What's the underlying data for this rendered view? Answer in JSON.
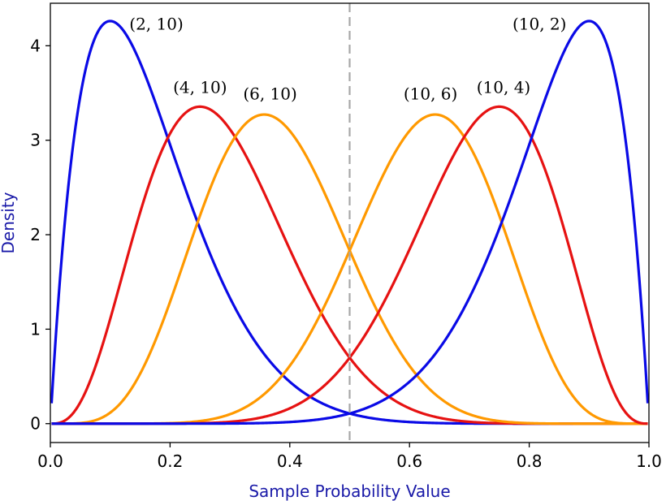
{
  "chart_data": {
    "type": "line",
    "title": "",
    "xlabel": "Sample Probability Value",
    "ylabel": "Density",
    "xlim": [
      0.0,
      1.0
    ],
    "ylim": [
      -0.2,
      4.45
    ],
    "xticks": [
      0.0,
      0.2,
      0.4,
      0.6,
      0.8,
      1.0
    ],
    "xtick_labels": [
      "0.0",
      "0.2",
      "0.4",
      "0.6",
      "0.8",
      "1.0"
    ],
    "yticks": [
      0,
      1,
      2,
      3,
      4
    ],
    "ytick_labels": [
      "0",
      "1",
      "2",
      "3",
      "4"
    ],
    "grid": false,
    "legend": "none",
    "reference_line": {
      "x": 0.5,
      "style": "dashed",
      "color": "#a8a8a8"
    },
    "series": [
      {
        "alpha": 2,
        "beta": 10,
        "label": "(2, 10)",
        "color": "#0a0ae6",
        "label_pos": [
          0.132,
          4.17
        ]
      },
      {
        "alpha": 4,
        "beta": 10,
        "label": "(4, 10)",
        "color": "#e61212",
        "label_pos": [
          0.205,
          3.5
        ]
      },
      {
        "alpha": 6,
        "beta": 10,
        "label": "(6, 10)",
        "color": "#ff9900",
        "label_pos": [
          0.322,
          3.43
        ]
      },
      {
        "alpha": 10,
        "beta": 6,
        "label": "(10, 6)",
        "color": "#ff9900",
        "label_pos": [
          0.59,
          3.43
        ]
      },
      {
        "alpha": 10,
        "beta": 4,
        "label": "(10, 4)",
        "color": "#e61212",
        "label_pos": [
          0.712,
          3.5
        ]
      },
      {
        "alpha": 10,
        "beta": 2,
        "label": "(10, 2)",
        "color": "#0a0ae6",
        "label_pos": [
          0.772,
          4.17
        ]
      }
    ]
  }
}
